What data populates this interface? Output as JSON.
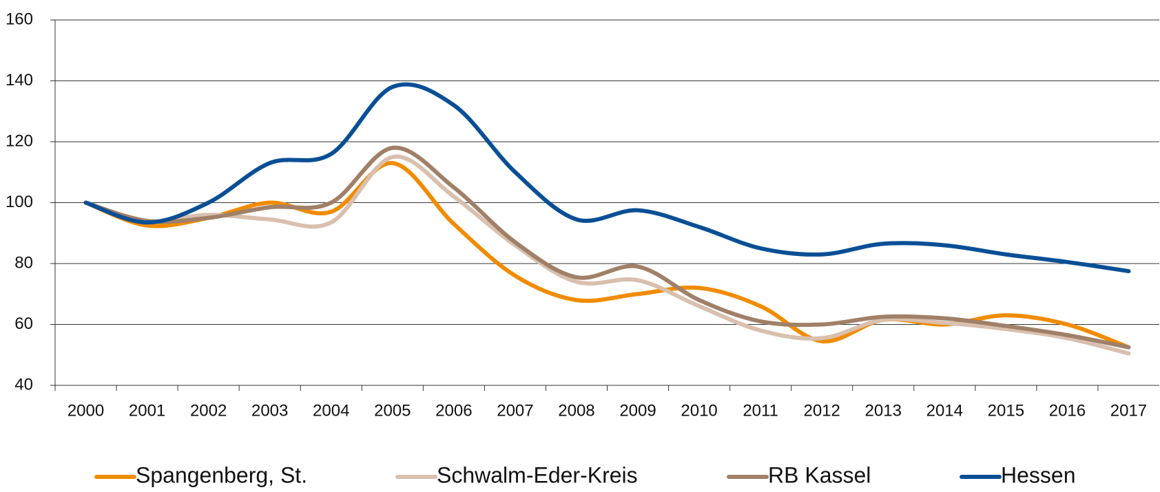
{
  "chart_data": {
    "type": "line",
    "categories": [
      "2000",
      "2001",
      "2002",
      "2003",
      "2004",
      "2005",
      "2006",
      "2007",
      "2008",
      "2009",
      "2010",
      "2011",
      "2012",
      "2013",
      "2014",
      "2015",
      "2016",
      "2017"
    ],
    "series": [
      {
        "name": "Spangenberg, St.",
        "color": "#f08c00",
        "values": [
          100,
          92.5,
          95,
          100,
          97,
          113,
          93,
          76,
          68,
          70,
          72,
          66,
          54.5,
          61.5,
          60,
          63,
          60,
          52.5
        ]
      },
      {
        "name": "Schwalm-Eder-Kreis",
        "color": "#d9bfae",
        "values": [
          100,
          94,
          96,
          94.5,
          93.5,
          115,
          102,
          86,
          74,
          74.5,
          66,
          58,
          55.5,
          61.5,
          60.5,
          58.5,
          55.5,
          50.5
        ]
      },
      {
        "name": "RB Kassel",
        "color": "#a08068",
        "values": [
          100,
          94,
          95,
          98.5,
          100,
          118,
          105,
          87,
          75.5,
          79,
          68,
          61,
          60,
          62.5,
          62,
          59.5,
          56.5,
          52.5
        ]
      },
      {
        "name": "Hessen",
        "color": "#0a4f96",
        "values": [
          100,
          93.5,
          100,
          113,
          116,
          138,
          132,
          110,
          94.5,
          97.5,
          92,
          85,
          83,
          86.5,
          86,
          83,
          80.5,
          77.5
        ]
      }
    ],
    "ylim": [
      40,
      160
    ],
    "yticks": [
      40,
      60,
      80,
      100,
      120,
      140,
      160
    ],
    "grid": true,
    "legend": "bottom",
    "smooth": true
  }
}
